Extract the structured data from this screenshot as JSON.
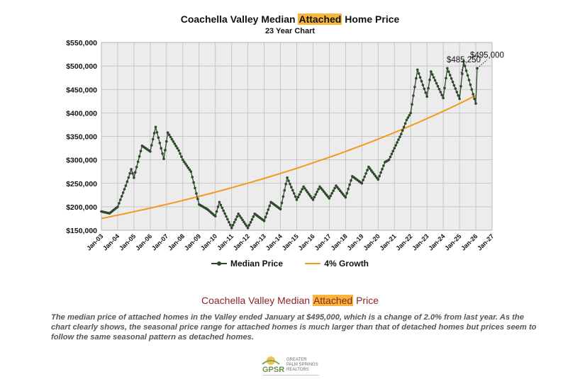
{
  "header": {
    "title_pre": "Coachella Valley Median ",
    "title_hl": "Attached",
    "title_post": " Home Price",
    "subtitle": "23 Year Chart"
  },
  "legend": {
    "median_label": "Median Price",
    "growth_label": "4% Growth"
  },
  "section": {
    "heading_pre": "Coachella Valley Median ",
    "heading_hl": "Attached",
    "heading_post": " Price",
    "body": "The median price of attached homes in the Valley ended January at $495,000, which is a change of 2.0% from last year. As the chart clearly shows, the seasonal price range for attached homes is much larger than that of detached homes but prices seem to follow the same seasonal pattern as detached homes."
  },
  "logo": {
    "mark": "GPSR",
    "line1": "GREATER",
    "line2": "PALM SPRINGS",
    "line3": "REALTORS"
  },
  "colors": {
    "median": "#2e4a2a",
    "growth": "#f29a1c",
    "plot_bg": "#ececec",
    "grid": "#bdbdbd",
    "highlight": "#f6b73c",
    "heading": "#8b2326"
  },
  "chart_data": {
    "type": "line",
    "title": "Coachella Valley Median Attached Home Price",
    "subtitle": "23 Year Chart",
    "x_range": [
      "Jan-03",
      "Jan-27"
    ],
    "ylim": [
      150000,
      550000
    ],
    "yticks": [
      150000,
      200000,
      250000,
      300000,
      350000,
      400000,
      450000,
      500000,
      550000
    ],
    "ytick_labels": [
      "$150,000",
      "$200,000",
      "$250,000",
      "$300,000",
      "$350,000",
      "$400,000",
      "$450,000",
      "$500,000",
      "$550,000"
    ],
    "xtick_labels": [
      "Jan-03",
      "Jan-04",
      "Jan-05",
      "Jan-06",
      "Jan-07",
      "Jan-08",
      "Jan-09",
      "Jan-10",
      "Jan-11",
      "Jan-12",
      "Jan-13",
      "Jan-14",
      "Jan-15",
      "Jan-16",
      "Jan-17",
      "Jan-18",
      "Jan-19",
      "Jan-20",
      "Jan-21",
      "Jan-22",
      "Jan-23",
      "Jan-24",
      "Jan-25",
      "Jan-26",
      "Jan-27"
    ],
    "grid": true,
    "legend_position": "bottom",
    "series": [
      {
        "name": "Median Price",
        "style": "line-with-markers",
        "anchors": [
          [
            "Jan-03",
            190000
          ],
          [
            "Jul-03",
            186000
          ],
          [
            "Jan-04",
            200000
          ],
          [
            "Jul-04",
            245000
          ],
          [
            "Nov-04",
            280000
          ],
          [
            "Jan-05",
            262000
          ],
          [
            "Jul-05",
            330000
          ],
          [
            "Jan-06",
            318000
          ],
          [
            "May-06",
            370000
          ],
          [
            "Nov-06",
            302000
          ],
          [
            "Feb-07",
            358000
          ],
          [
            "Oct-07",
            320000
          ],
          [
            "Jan-08",
            300000
          ],
          [
            "Jul-08",
            275000
          ],
          [
            "Jan-09",
            205000
          ],
          [
            "Jul-09",
            195000
          ],
          [
            "Jan-10",
            180000
          ],
          [
            "Apr-10",
            210000
          ],
          [
            "Jan-11",
            155000
          ],
          [
            "Jun-11",
            185000
          ],
          [
            "Jan-12",
            155000
          ],
          [
            "Jun-12",
            185000
          ],
          [
            "Jan-13",
            170000
          ],
          [
            "Jun-13",
            210000
          ],
          [
            "Jan-14",
            195000
          ],
          [
            "Jun-14",
            262000
          ],
          [
            "Jan-15",
            215000
          ],
          [
            "Jun-15",
            243000
          ],
          [
            "Jan-16",
            215000
          ],
          [
            "Jun-16",
            243000
          ],
          [
            "Jan-17",
            218000
          ],
          [
            "Jun-17",
            245000
          ],
          [
            "Jan-18",
            220000
          ],
          [
            "Jun-18",
            265000
          ],
          [
            "Jan-19",
            250000
          ],
          [
            "Jun-19",
            285000
          ],
          [
            "Jan-20",
            258000
          ],
          [
            "Jun-20",
            295000
          ],
          [
            "Sep-20",
            300000
          ],
          [
            "Jan-21",
            325000
          ],
          [
            "Jun-21",
            355000
          ],
          [
            "Oct-21",
            385000
          ],
          [
            "Jan-22",
            400000
          ],
          [
            "Jun-22",
            492000
          ],
          [
            "Jan-23",
            435000
          ],
          [
            "Apr-23",
            488000
          ],
          [
            "Jan-24",
            432000
          ],
          [
            "Apr-24",
            495000
          ],
          [
            "Jan-25",
            430000
          ],
          [
            "Apr-25",
            510000
          ],
          [
            "Jan-26",
            420000
          ],
          [
            "Feb-26",
            495000
          ]
        ]
      },
      {
        "name": "4% Growth",
        "style": "line",
        "start": [
          "Jan-03",
          175000
        ],
        "end": [
          "Jan-26",
          437000
        ]
      }
    ],
    "annotations": [
      {
        "text": "$485,250",
        "x": "Feb-25",
        "y": 485250
      },
      {
        "text": "$495,000",
        "x": "Feb-26",
        "y": 495000
      }
    ]
  }
}
